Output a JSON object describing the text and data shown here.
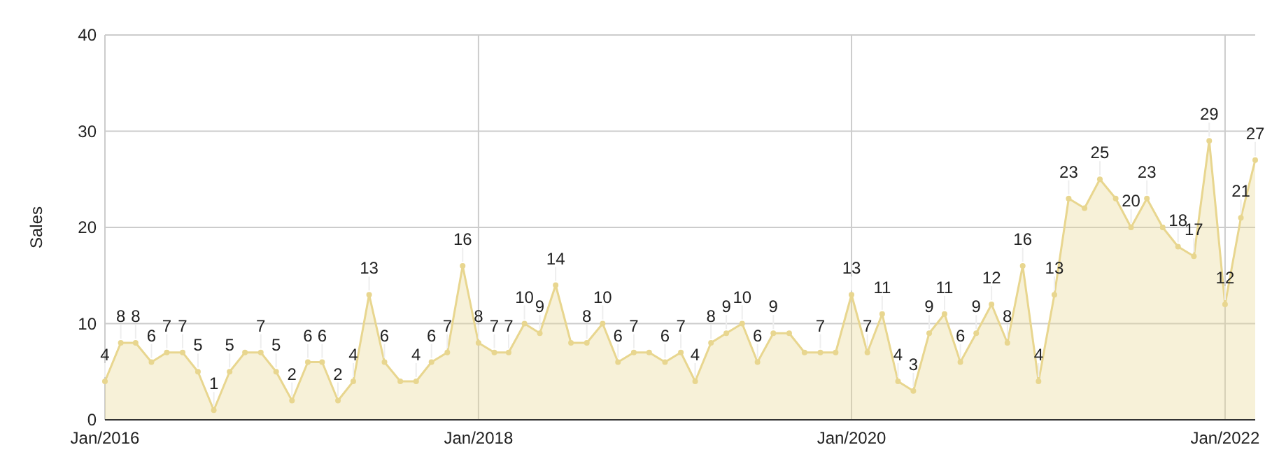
{
  "chart_data": {
    "type": "area",
    "ylabel": "Sales",
    "x": [
      "2016-01",
      "2016-02",
      "2016-03",
      "2016-04",
      "2016-05",
      "2016-06",
      "2016-07",
      "2016-08",
      "2016-09",
      "2016-10",
      "2016-11",
      "2016-12",
      "2017-01",
      "2017-02",
      "2017-03",
      "2017-04",
      "2017-05",
      "2017-06",
      "2017-07",
      "2017-08",
      "2017-09",
      "2017-10",
      "2017-11",
      "2017-12",
      "2018-01",
      "2018-02",
      "2018-03",
      "2018-04",
      "2018-05",
      "2018-06",
      "2018-07",
      "2018-08",
      "2018-09",
      "2018-10",
      "2018-11",
      "2018-12",
      "2019-01",
      "2019-02",
      "2019-03",
      "2019-04",
      "2019-05",
      "2019-06",
      "2019-07",
      "2019-08",
      "2019-09",
      "2019-10",
      "2019-11",
      "2019-12",
      "2020-01",
      "2020-02",
      "2020-03",
      "2020-04",
      "2020-05",
      "2020-06",
      "2020-07",
      "2020-08",
      "2020-09",
      "2020-10",
      "2020-11",
      "2020-12",
      "2021-01",
      "2021-02",
      "2021-03",
      "2021-04",
      "2021-05",
      "2021-06",
      "2021-07",
      "2021-08",
      "2021-09",
      "2021-10",
      "2021-11",
      "2021-12",
      "2022-01",
      "2022-02",
      "2022-03"
    ],
    "series": [
      {
        "color": "#e8d68f",
        "values": [
          4,
          8,
          8,
          6,
          7,
          7,
          5,
          1,
          5,
          7,
          7,
          5,
          2,
          6,
          6,
          2,
          4,
          13,
          6,
          4,
          4,
          6,
          7,
          16,
          8,
          7,
          7,
          10,
          9,
          14,
          8,
          8,
          10,
          6,
          7,
          7,
          6,
          7,
          4,
          8,
          9,
          10,
          6,
          9,
          9,
          7,
          7,
          7,
          13,
          7,
          11,
          4,
          3,
          9,
          11,
          6,
          9,
          12,
          8,
          16,
          4,
          13,
          23,
          22,
          25,
          23,
          20,
          23,
          20,
          18,
          17,
          29,
          12,
          21,
          27
        ],
        "value_labels": [
          "4",
          "8",
          "8",
          "6",
          "7",
          "7",
          "5",
          "1",
          "5",
          null,
          "7",
          "5",
          "2",
          "6",
          "6",
          "2",
          "4",
          "13",
          "6",
          null,
          "4",
          "6",
          "7",
          "16",
          "8",
          "7",
          "7",
          "10",
          "9",
          "14",
          null,
          "8",
          "10",
          "6",
          "7",
          null,
          "6",
          "7",
          "4",
          "8",
          "9",
          "10",
          "6",
          "9",
          null,
          null,
          "7",
          null,
          "13",
          "7",
          "11",
          "4",
          "3",
          "9",
          "11",
          "6",
          "9",
          "12",
          "8",
          "16",
          "4",
          "13",
          "23",
          null,
          "25",
          null,
          "20",
          "23",
          null,
          "18",
          "17",
          "29",
          "12",
          "21",
          "27"
        ]
      }
    ],
    "xlim": [
      "2016-01",
      "2022-03"
    ],
    "xticks": [
      {
        "value": "2016-01",
        "label": "Jan/2016"
      },
      {
        "value": "2018-01",
        "label": "Jan/2018"
      },
      {
        "value": "2020-01",
        "label": "Jan/2020"
      },
      {
        "value": "2022-01",
        "label": "Jan/2022"
      }
    ],
    "ylim": [
      0,
      40
    ],
    "yticks": [
      0,
      10,
      20,
      30,
      40
    ],
    "grid": true,
    "marker": "circle"
  }
}
